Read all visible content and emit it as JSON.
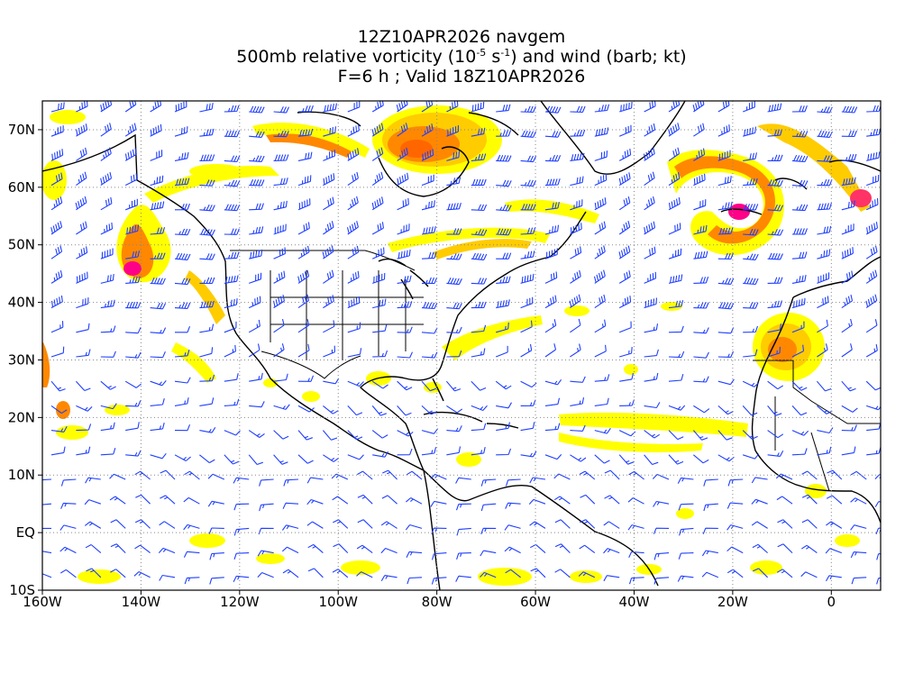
{
  "title": {
    "line1": "12Z10APR2026 navgem",
    "line2_a": "500mb relative vorticity (10",
    "line2_sup1": "-5",
    "line2_b": " s",
    "line2_sup2": "-1",
    "line2_c": ") and wind (barb; kt)",
    "line3": "F=6 h ; Valid 18Z10APR2026"
  },
  "map": {
    "lon_range": [
      -160,
      10
    ],
    "lat_range": [
      -10,
      75
    ],
    "lat_labels": [
      "70N",
      "60N",
      "50N",
      "40N",
      "30N",
      "20N",
      "10N",
      "EQ",
      "10S"
    ],
    "lat_values": [
      70,
      60,
      50,
      40,
      30,
      20,
      10,
      0,
      -10
    ],
    "lon_labels": [
      "160W",
      "140W",
      "120W",
      "100W",
      "80W",
      "60W",
      "40W",
      "20W",
      "0"
    ],
    "lon_values": [
      -160,
      -140,
      -120,
      -100,
      -80,
      -60,
      -40,
      -20,
      0
    ],
    "colors": {
      "vorticity_low": "#ffff00",
      "vorticity_mid": "#ffcc00",
      "vorticity_high": "#ff8800",
      "vorticity_peak": "#ff0088",
      "barb": "#1f3fff",
      "coast": "#000000",
      "grid": "#888888"
    }
  }
}
